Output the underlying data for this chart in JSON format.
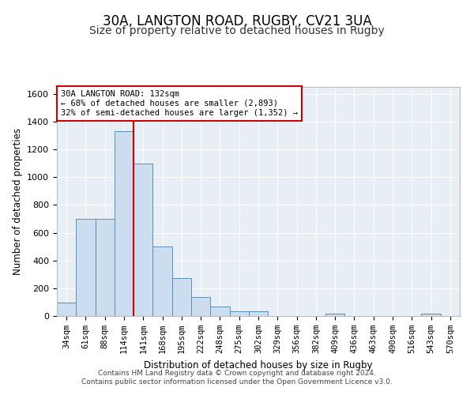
{
  "title_line1": "30A, LANGTON ROAD, RUGBY, CV21 3UA",
  "title_line2": "Size of property relative to detached houses in Rugby",
  "xlabel": "Distribution of detached houses by size in Rugby",
  "ylabel": "Number of detached properties",
  "footer": "Contains HM Land Registry data © Crown copyright and database right 2024.\nContains public sector information licensed under the Open Government Licence v3.0.",
  "categories": [
    "34sqm",
    "61sqm",
    "88sqm",
    "114sqm",
    "141sqm",
    "168sqm",
    "195sqm",
    "222sqm",
    "248sqm",
    "275sqm",
    "302sqm",
    "329sqm",
    "356sqm",
    "382sqm",
    "409sqm",
    "436sqm",
    "463sqm",
    "490sqm",
    "516sqm",
    "543sqm",
    "570sqm"
  ],
  "values": [
    95,
    700,
    700,
    1330,
    1100,
    500,
    275,
    135,
    70,
    32,
    32,
    0,
    0,
    0,
    18,
    0,
    0,
    0,
    0,
    18,
    0
  ],
  "bar_color": "#ccddf0",
  "bar_edge_color": "#5b8db8",
  "vline_index": 3.5,
  "vline_color": "#cc0000",
  "annotation_text": "30A LANGTON ROAD: 132sqm\n← 68% of detached houses are smaller (2,893)\n32% of semi-detached houses are larger (1,352) →",
  "annotation_box_color": "#cc0000",
  "ylim": [
    0,
    1650
  ],
  "yticks": [
    0,
    200,
    400,
    600,
    800,
    1000,
    1200,
    1400,
    1600
  ],
  "background_color": "#e8eef5",
  "grid_color": "#ffffff",
  "title_fontsize": 12,
  "subtitle_fontsize": 10,
  "axis_label_fontsize": 8.5,
  "tick_fontsize": 7.5,
  "footer_fontsize": 6.5
}
